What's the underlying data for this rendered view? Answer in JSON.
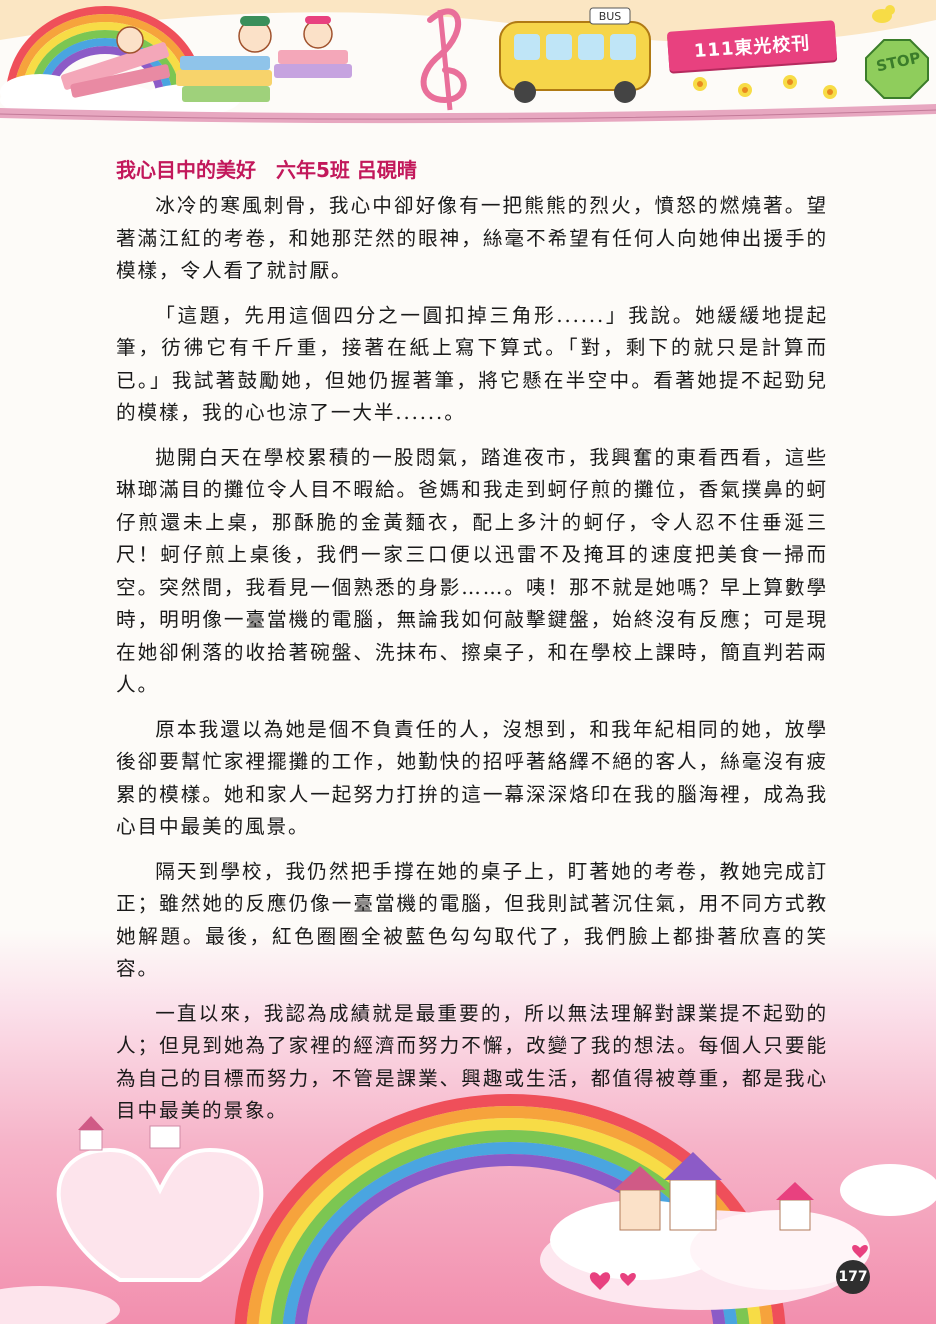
{
  "header": {
    "banner_text": "111東光校刊",
    "stop_sign_text": "STOP",
    "bus_sign_text": "BUS"
  },
  "article": {
    "title": "我心目中的美好　六年5班 呂硯晴",
    "paragraphs": [
      "冰冷的寒風刺骨，我心中卻好像有一把熊熊的烈火，憤怒的燃燒著。望著滿江紅的考卷，和她那茫然的眼神，絲毫不希望有任何人向她伸出援手的模樣，令人看了就討厭。",
      "「這題，先用這個四分之一圓扣掉三角形......」我說。她緩緩地提起筆，彷彿它有千斤重，接著在紙上寫下算式。「對，剩下的就只是計算而已。」我試著鼓勵她，但她仍握著筆，將它懸在半空中。看著她提不起勁兒的模樣，我的心也涼了一大半......。",
      "拋開白天在學校累積的一股悶氣，踏進夜市，我興奮的東看西看，這些琳瑯滿目的攤位令人目不暇給。爸媽和我走到蚵仔煎的攤位，香氣撲鼻的蚵仔煎還未上桌，那酥脆的金黃麵衣，配上多汁的蚵仔，令人忍不住垂涎三尺！蚵仔煎上桌後，我們一家三口便以迅雷不及掩耳的速度把美食一掃而空。突然間，我看見一個熟悉的身影……。咦！那不就是她嗎？早上算數學時，明明像一臺當機的電腦，無論我如何敲擊鍵盤，始終沒有反應；可是現在她卻俐落的收拾著碗盤、洗抹布、擦桌子，和在學校上課時，簡直判若兩人。",
      "原本我還以為她是個不負責任的人，沒想到，和我年紀相同的她，放學後卻要幫忙家裡擺攤的工作，她勤快的招呼著絡繹不絕的客人，絲毫沒有疲累的模樣。她和家人一起努力打拚的這一幕深深烙印在我的腦海裡，成為我心目中最美的風景。",
      "隔天到學校，我仍然把手撐在她的桌子上，盯著她的考卷，教她完成訂正；雖然她的反應仍像一臺當機的電腦，但我則試著沉住氣，用不同方式教她解題。最後，紅色圈圈全被藍色勾勾取代了，我們臉上都掛著欣喜的笑容。",
      "一直以來，我認為成績就是最重要的，所以無法理解對課業提不起勁的人；但見到她為了家裡的經濟而努力不懈，改變了我的想法。每個人只要能為自己的目標而努力，不管是課業、興趣或生活，都值得被尊重，都是我心目中最美的景象。"
    ]
  },
  "footer": {
    "page_number": "177"
  },
  "colors": {
    "title": "#c2185b",
    "banner": "#e8417f",
    "bottom_pink": "#f28fae"
  }
}
